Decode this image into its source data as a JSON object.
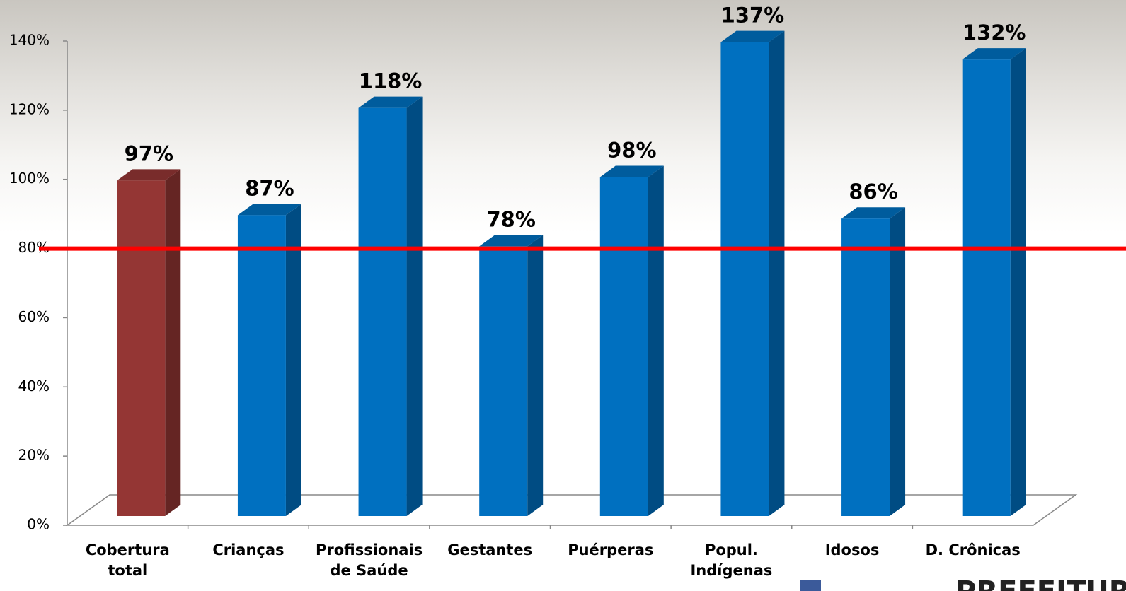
{
  "chart_data": {
    "type": "bar3d",
    "categories": [
      "Cobertura total",
      "Crianças",
      "Profissionais de Saúde",
      "Gestantes",
      "Puérperas",
      "Popul. Indígenas",
      "Idosos",
      "D. Crônicas"
    ],
    "values": [
      97,
      87,
      118,
      78,
      98,
      137,
      86,
      132
    ],
    "value_labels": [
      "97%",
      "87%",
      "118%",
      "78%",
      "98%",
      "137%",
      "86%",
      "132%"
    ],
    "colors": [
      "#943634",
      "#0070c0",
      "#0070c0",
      "#0070c0",
      "#0070c0",
      "#0070c0",
      "#0070c0",
      "#0070c0"
    ],
    "ylim": [
      0,
      140
    ],
    "yticks": [
      {
        "value": 0,
        "label": "0%"
      },
      {
        "value": 20,
        "label": "20%"
      },
      {
        "value": 40,
        "label": "40%"
      },
      {
        "value": 60,
        "label": "60%"
      },
      {
        "value": 80,
        "label": "80%"
      },
      {
        "value": 100,
        "label": "100%"
      },
      {
        "value": 120,
        "label": "120%"
      },
      {
        "value": 140,
        "label": "140%"
      }
    ],
    "reference_line": {
      "value": 80,
      "color": "#ff0000"
    },
    "footer_logo": "PREFEITURA"
  }
}
